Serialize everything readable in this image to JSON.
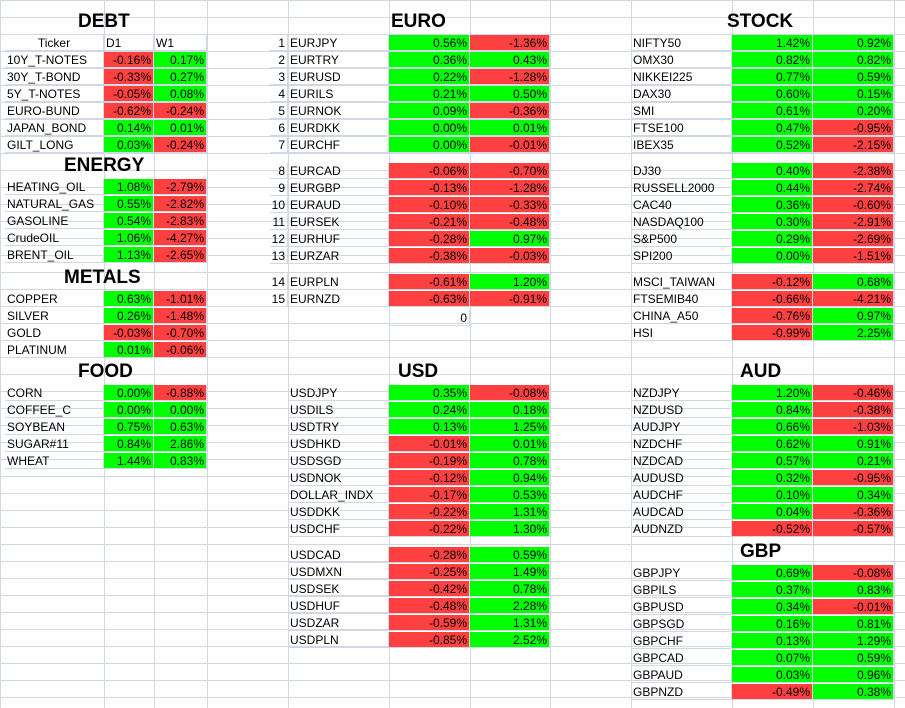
{
  "colors": {
    "up": "#00ff00",
    "down": "#ff4040",
    "grid": "#d0d7e5"
  },
  "headers": {
    "debt": "DEBT",
    "energy": "ENERGY",
    "metals": "METALS",
    "food": "FOOD",
    "euro": "EURO",
    "usd": "USD",
    "stock": "STOCK",
    "aud": "AUD",
    "gbp": "GBP"
  },
  "column_headers": {
    "ticker": "Ticker",
    "d1": "D1",
    "w1": "W1"
  },
  "misc": {
    "zero": "0"
  },
  "debt": [
    {
      "t": "10Y_T-NOTES",
      "d1": "-0.16%",
      "w1": "0.17%"
    },
    {
      "t": "30Y_T-BOND",
      "d1": "-0.33%",
      "w1": "0.27%"
    },
    {
      "t": "5Y_T-NOTES",
      "d1": "-0.05%",
      "w1": "0.08%"
    },
    {
      "t": "EURO-BUND",
      "d1": "-0.62%",
      "w1": "-0.24%"
    },
    {
      "t": "JAPAN_BOND",
      "d1": "0.14%",
      "w1": "0.01%"
    },
    {
      "t": "GILT_LONG",
      "d1": "0.03%",
      "w1": "-0.24%"
    }
  ],
  "energy": [
    {
      "t": "HEATING_OIL",
      "d1": "1.08%",
      "w1": "-2.79%"
    },
    {
      "t": "NATURAL_GAS",
      "d1": "0.55%",
      "w1": "-2.82%"
    },
    {
      "t": "GASOLINE",
      "d1": "0.54%",
      "w1": "-2.83%"
    },
    {
      "t": "CrudeOIL",
      "d1": "1.06%",
      "w1": "-4.27%"
    },
    {
      "t": "BRENT_OIL",
      "d1": "1.13%",
      "w1": "-2.65%"
    }
  ],
  "metals": [
    {
      "t": "COPPER",
      "d1": "0.63%",
      "w1": "-1.01%"
    },
    {
      "t": "SILVER",
      "d1": "0.26%",
      "w1": "-1.48%"
    },
    {
      "t": "GOLD",
      "d1": "-0.03%",
      "w1": "-0.70%"
    },
    {
      "t": "PLATINUM",
      "d1": "0.01%",
      "w1": "-0.06%"
    }
  ],
  "food": [
    {
      "t": "CORN",
      "d1": "0.00%",
      "w1": "-0.88%"
    },
    {
      "t": "COFFEE_C",
      "d1": "0.00%",
      "w1": "0.00%"
    },
    {
      "t": "SOYBEAN",
      "d1": "0.75%",
      "w1": "0.63%"
    },
    {
      "t": "SUGAR#11",
      "d1": "0.84%",
      "w1": "2.86%"
    },
    {
      "t": "WHEAT",
      "d1": "1.44%",
      "w1": "0.83%"
    }
  ],
  "euro": [
    {
      "i": "1",
      "t": "EURJPY",
      "d1": "0.56%",
      "w1": "-1.36%"
    },
    {
      "i": "2",
      "t": "EURTRY",
      "d1": "0.36%",
      "w1": "0.43%"
    },
    {
      "i": "3",
      "t": "EURUSD",
      "d1": "0.22%",
      "w1": "-1.28%"
    },
    {
      "i": "4",
      "t": "EURILS",
      "d1": "0.21%",
      "w1": "0.50%"
    },
    {
      "i": "5",
      "t": "EURNOK",
      "d1": "0.09%",
      "w1": "-0.36%"
    },
    {
      "i": "6",
      "t": "EURDKK",
      "d1": "0.00%",
      "w1": "0.01%"
    },
    {
      "i": "7",
      "t": "EURCHF",
      "d1": "0.00%",
      "w1": "-0.01%"
    },
    {
      "i": "8",
      "t": "EURCAD",
      "d1": "-0.06%",
      "w1": "-0.70%"
    },
    {
      "i": "9",
      "t": "EURGBP",
      "d1": "-0.13%",
      "w1": "-1.28%"
    },
    {
      "i": "10",
      "t": "EURAUD",
      "d1": "-0.10%",
      "w1": "-0.33%"
    },
    {
      "i": "11",
      "t": "EURSEK",
      "d1": "-0.21%",
      "w1": "-0.48%"
    },
    {
      "i": "12",
      "t": "EURHUF",
      "d1": "-0.28%",
      "w1": "0.97%"
    },
    {
      "i": "13",
      "t": "EURZAR",
      "d1": "-0.38%",
      "w1": "-0.03%"
    },
    {
      "i": "14",
      "t": "EURPLN",
      "d1": "-0.61%",
      "w1": "1.20%"
    },
    {
      "i": "15",
      "t": "EURNZD",
      "d1": "-0.63%",
      "w1": "-0.91%"
    }
  ],
  "usd": [
    {
      "t": "USDJPY",
      "d1": "0.35%",
      "w1": "-0.08%"
    },
    {
      "t": "USDILS",
      "d1": "0.24%",
      "w1": "0.18%"
    },
    {
      "t": "USDTRY",
      "d1": "0.13%",
      "w1": "1.25%"
    },
    {
      "t": "USDHKD",
      "d1": "-0.01%",
      "w1": "0.01%"
    },
    {
      "t": "USDSGD",
      "d1": "-0.19%",
      "w1": "0.78%"
    },
    {
      "t": "USDNOK",
      "d1": "-0.12%",
      "w1": "0.94%"
    },
    {
      "t": "DOLLAR_INDX",
      "d1": "-0.17%",
      "w1": "0.53%"
    },
    {
      "t": "USDDKK",
      "d1": "-0.22%",
      "w1": "1.31%"
    },
    {
      "t": "USDCHF",
      "d1": "-0.22%",
      "w1": "1.30%"
    },
    {
      "t": "USDCAD",
      "d1": "-0.28%",
      "w1": "0.59%"
    },
    {
      "t": "USDMXN",
      "d1": "-0.25%",
      "w1": "1.49%"
    },
    {
      "t": "USDSEK",
      "d1": "-0.42%",
      "w1": "0.78%"
    },
    {
      "t": "USDHUF",
      "d1": "-0.48%",
      "w1": "2.28%"
    },
    {
      "t": "USDZAR",
      "d1": "-0.59%",
      "w1": "1.31%"
    },
    {
      "t": "USDPLN",
      "d1": "-0.85%",
      "w1": "2.52%"
    }
  ],
  "stock": [
    {
      "t": "NIFTY50",
      "d1": "1.42%",
      "w1": "0.92%"
    },
    {
      "t": "OMX30",
      "d1": "0.82%",
      "w1": "0.82%"
    },
    {
      "t": "NIKKEI225",
      "d1": "0.77%",
      "w1": "0.59%"
    },
    {
      "t": "DAX30",
      "d1": "0.60%",
      "w1": "0.15%"
    },
    {
      "t": "SMI",
      "d1": "0.61%",
      "w1": "0.20%"
    },
    {
      "t": "FTSE100",
      "d1": "0.47%",
      "w1": "-0.95%"
    },
    {
      "t": "IBEX35",
      "d1": "0.52%",
      "w1": "-2.15%"
    },
    {
      "t": "DJ30",
      "d1": "0.40%",
      "w1": "-2.38%"
    },
    {
      "t": "RUSSELL2000",
      "d1": "0.44%",
      "w1": "-2.74%"
    },
    {
      "t": "CAC40",
      "d1": "0.36%",
      "w1": "-0.60%"
    },
    {
      "t": "NASDAQ100",
      "d1": "0.30%",
      "w1": "-2.91%"
    },
    {
      "t": "S&P500",
      "d1": "0.29%",
      "w1": "-2.69%"
    },
    {
      "t": "SPI200",
      "d1": "0.00%",
      "w1": "-1.51%"
    },
    {
      "t": "MSCI_TAIWAN",
      "d1": "-0.12%",
      "w1": "0.68%"
    },
    {
      "t": "FTSEMIB40",
      "d1": "-0.66%",
      "w1": "-4.21%"
    },
    {
      "t": "CHINA_A50",
      "d1": "-0.76%",
      "w1": "0.97%"
    },
    {
      "t": "HSI",
      "d1": "-0.99%",
      "w1": "2.25%"
    }
  ],
  "aud": [
    {
      "t": "NZDJPY",
      "d1": "1.20%",
      "w1": "-0.46%"
    },
    {
      "t": "NZDUSD",
      "d1": "0.84%",
      "w1": "-0.38%"
    },
    {
      "t": "AUDJPY",
      "d1": "0.66%",
      "w1": "-1.03%"
    },
    {
      "t": "NZDCHF",
      "d1": "0.62%",
      "w1": "0.91%"
    },
    {
      "t": "NZDCAD",
      "d1": "0.57%",
      "w1": "0.21%"
    },
    {
      "t": "AUDUSD",
      "d1": "0.32%",
      "w1": "-0.95%"
    },
    {
      "t": "AUDCHF",
      "d1": "0.10%",
      "w1": "0.34%"
    },
    {
      "t": "AUDCAD",
      "d1": "0.04%",
      "w1": "-0.36%"
    },
    {
      "t": "AUDNZD",
      "d1": "-0.52%",
      "w1": "-0.57%"
    }
  ],
  "gbp": [
    {
      "t": "GBPJPY",
      "d1": "0.69%",
      "w1": "-0.08%"
    },
    {
      "t": "GBPILS",
      "d1": "0.37%",
      "w1": "0.83%"
    },
    {
      "t": "GBPUSD",
      "d1": "0.34%",
      "w1": "-0.01%"
    },
    {
      "t": "GBPSGD",
      "d1": "0.16%",
      "w1": "0.81%"
    },
    {
      "t": "GBPCHF",
      "d1": "0.13%",
      "w1": "1.29%"
    },
    {
      "t": "GBPCAD",
      "d1": "0.07%",
      "w1": "0.59%"
    },
    {
      "t": "GBPAUD",
      "d1": "0.03%",
      "w1": "0.96%"
    },
    {
      "t": "GBPNZD",
      "d1": "-0.49%",
      "w1": "0.38%"
    }
  ]
}
